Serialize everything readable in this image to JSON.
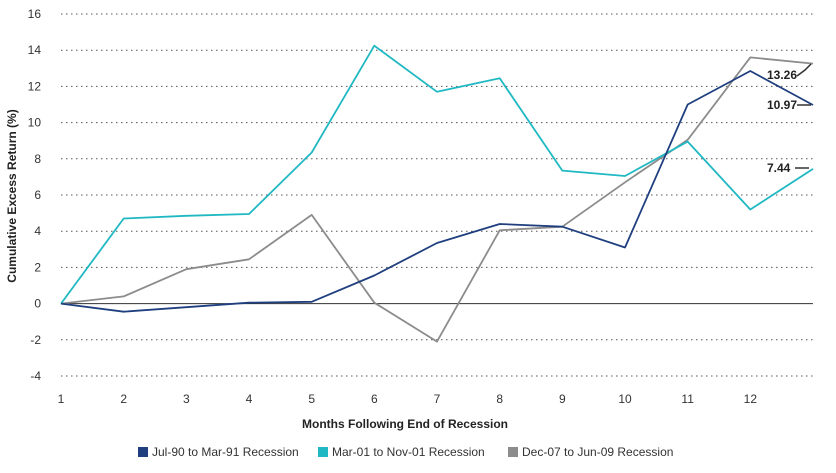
{
  "chart_data": {
    "type": "line",
    "xlabel": "Months Following End of Recession",
    "ylabel": "Cumulative Excess Return (%)",
    "x": [
      1,
      2,
      3,
      4,
      5,
      6,
      7,
      8,
      9,
      10,
      11,
      12,
      13
    ],
    "x_tick_labels": [
      "1",
      "2",
      "3",
      "4",
      "5",
      "6",
      "7",
      "8",
      "9",
      "10",
      "11",
      "12"
    ],
    "ylim": [
      -4,
      16
    ],
    "y_ticks": [
      -4,
      -2,
      0,
      2,
      4,
      6,
      8,
      10,
      12,
      14,
      16
    ],
    "grid": "horizontal dotted",
    "legend_position": "bottom",
    "series": [
      {
        "name": "Jul-90 to Mar-91 Recession",
        "color": "#1f3f7f",
        "values": [
          0,
          -0.45,
          -0.2,
          0.05,
          0.1,
          1.55,
          3.35,
          4.4,
          4.25,
          3.1,
          11.0,
          12.85,
          10.97
        ]
      },
      {
        "name": "Mar-01 to Nov-01 Recession",
        "color": "#1fb8c3",
        "values": [
          0,
          4.7,
          4.85,
          4.95,
          8.35,
          14.25,
          11.7,
          12.45,
          7.35,
          7.05,
          8.95,
          5.2,
          7.44
        ]
      },
      {
        "name": "Dec-07 to Jun-09 Recession",
        "color": "#8c8c8c",
        "values": [
          0,
          0.4,
          1.9,
          2.45,
          4.9,
          0.05,
          -2.1,
          4.05,
          4.25,
          6.7,
          9.05,
          13.6,
          13.26
        ]
      }
    ],
    "annotations": [
      {
        "label": "13.26",
        "series": "Dec-07 to Jun-09 Recession",
        "value": 13.26
      },
      {
        "label": "10.97",
        "series": "Jul-90 to Mar-91 Recession",
        "value": 10.97
      },
      {
        "label": "7.44",
        "series": "Mar-01 to Nov-01 Recession",
        "value": 7.44
      }
    ]
  }
}
